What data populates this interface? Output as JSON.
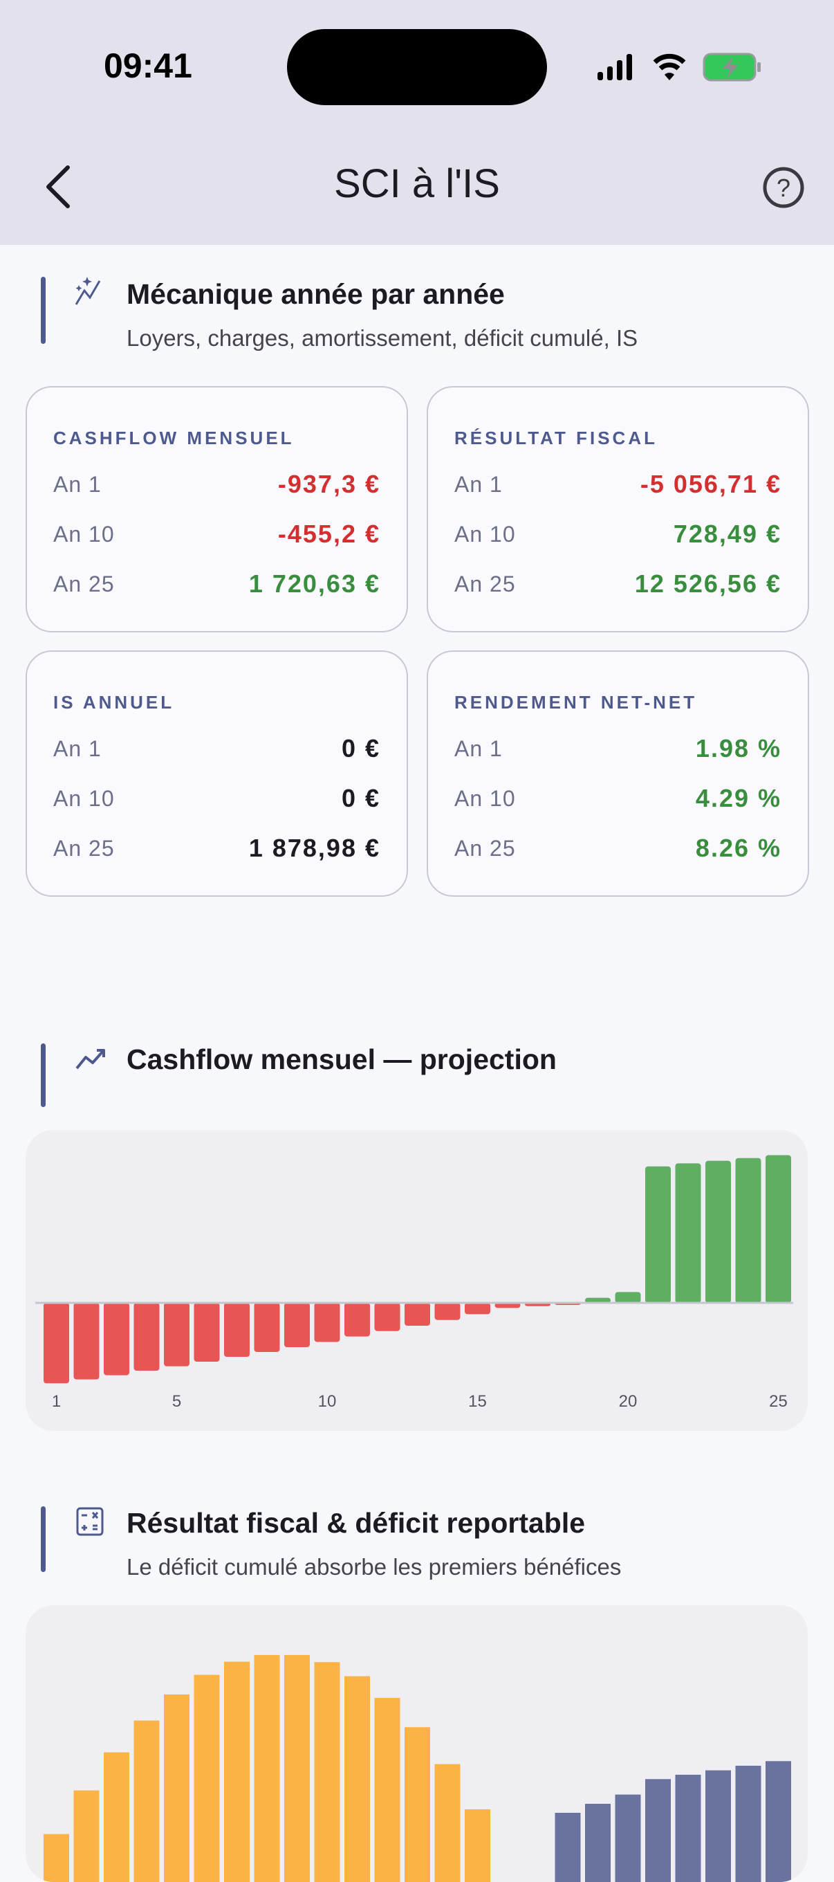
{
  "status_bar": {
    "time": "09:41"
  },
  "nav": {
    "title": "SCI à l'IS"
  },
  "section_mechanics": {
    "title": "Mécanique année par année",
    "subtitle": "Loyers, charges, amortissement, déficit cumulé, IS"
  },
  "cards": [
    {
      "label": "CASHFLOW MENSUEL",
      "rows": [
        {
          "k": "An 1",
          "v": "-937,3 €",
          "tone": "neg"
        },
        {
          "k": "An 10",
          "v": "-455,2 €",
          "tone": "neg"
        },
        {
          "k": "An 25",
          "v": "1 720,63 €",
          "tone": "pos"
        }
      ]
    },
    {
      "label": "RÉSULTAT FISCAL",
      "rows": [
        {
          "k": "An 1",
          "v": "-5 056,71 €",
          "tone": "neg"
        },
        {
          "k": "An 10",
          "v": "728,49 €",
          "tone": "pos"
        },
        {
          "k": "An 25",
          "v": "12 526,56 €",
          "tone": "pos"
        }
      ]
    },
    {
      "label": "IS ANNUEL",
      "rows": [
        {
          "k": "An 1",
          "v": "0 €",
          "tone": "neu"
        },
        {
          "k": "An 10",
          "v": "0 €",
          "tone": "neu"
        },
        {
          "k": "An 25",
          "v": "1 878,98 €",
          "tone": "neu"
        }
      ]
    },
    {
      "label": "RENDEMENT NET-NET",
      "rows": [
        {
          "k": "An 1",
          "v": "1.98 %",
          "tone": "pos"
        },
        {
          "k": "An 10",
          "v": "4.29 %",
          "tone": "pos"
        },
        {
          "k": "An 25",
          "v": "8.26 %",
          "tone": "pos"
        }
      ]
    }
  ],
  "section_cashflow": {
    "title": "Cashflow mensuel — projection"
  },
  "section_result": {
    "title": "Résultat fiscal & déficit reportable",
    "subtitle": "Le déficit cumulé absorbe les premiers bénéfices"
  },
  "colors": {
    "accent": "#4E5A8E",
    "negative": "#E85555",
    "positive": "#5FAE62",
    "deficit": "#FBB346",
    "result": "#6A72A0"
  },
  "chart_data": [
    {
      "type": "bar",
      "x": [
        1,
        2,
        3,
        4,
        5,
        6,
        7,
        8,
        9,
        10,
        11,
        12,
        13,
        14,
        15,
        16,
        17,
        18,
        19,
        20,
        21,
        22,
        23,
        24,
        25
      ],
      "values": [
        -937.3,
        -892,
        -843,
        -790,
        -739,
        -685,
        -629,
        -572,
        -516,
        -455.2,
        -392,
        -328,
        -266,
        -199,
        -132,
        -59,
        -38,
        -15,
        59,
        126,
        1590,
        1625,
        1655,
        1687,
        1720.63
      ],
      "xticks": [
        "1",
        "5",
        "10",
        "15",
        "20",
        "25"
      ],
      "grid": false
    },
    {
      "type": "bar",
      "x": [
        1,
        2,
        3,
        4,
        5,
        6,
        7,
        8,
        9,
        10,
        11,
        12,
        13,
        14,
        15,
        16,
        17,
        18,
        19,
        20,
        21,
        22,
        23,
        24,
        25
      ],
      "series": [
        {
          "color": "#FBB346",
          "values": [
            5057,
            9527,
            13428,
            16690,
            19361,
            21371,
            22718,
            23404,
            23404,
            22671,
            21229,
            19007,
            16004,
            12222,
            7588,
            0,
            0,
            0,
            0,
            0,
            0,
            0,
            0,
            0,
            0
          ]
        },
        {
          "color": "#6A72A0",
          "values": [
            0,
            0,
            0,
            0,
            0,
            0,
            0,
            0,
            0,
            0,
            0,
            0,
            0,
            0,
            0,
            0,
            0,
            7234,
            8156,
            9101,
            10685,
            11134,
            11584,
            12056,
            12527
          ]
        }
      ],
      "grid": false
    }
  ]
}
